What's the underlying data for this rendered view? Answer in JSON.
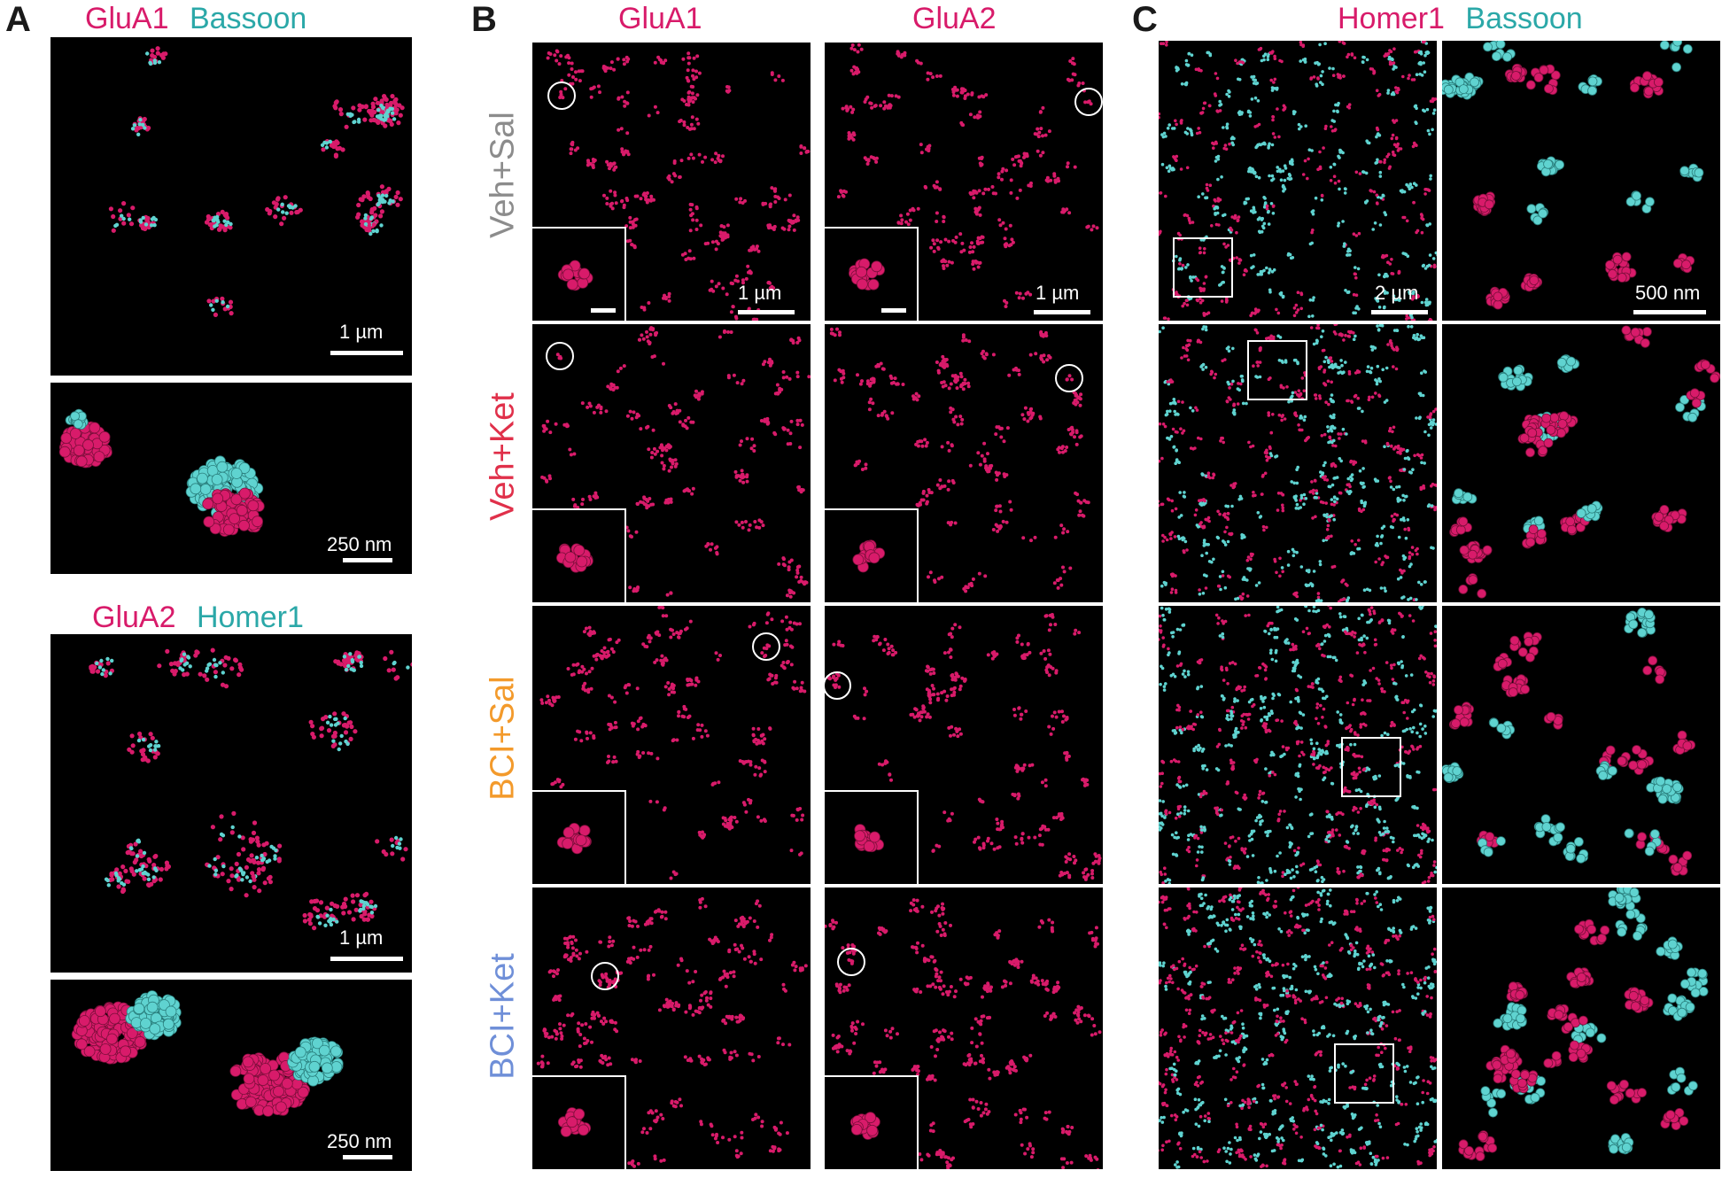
{
  "panels": {
    "a": "A",
    "b": "B",
    "c": "C"
  },
  "a": {
    "top_header": {
      "magenta": "GluA1",
      "cyan": "Bassoon"
    },
    "bottom_header": {
      "magenta": "GluA2",
      "cyan": "Homer1"
    },
    "scale_overview": "1 µm",
    "scale_zoom": "250 nm"
  },
  "b": {
    "col_headers": [
      "GluA1",
      "GluA2"
    ],
    "row_labels": [
      "Veh+Sal",
      "Veh+Ket",
      "BCI+Sal",
      "BCI+Ket"
    ],
    "scale": "1 µm"
  },
  "c": {
    "header": {
      "magenta": "Homer1",
      "cyan": "Bassoon"
    },
    "scale_overview": "2 µm",
    "scale_zoom": "500 nm"
  },
  "colors": {
    "magenta": "#d81b6a",
    "cyan": "#5fd3d0",
    "row_veh_sal": "#8c8c8c",
    "row_veh_ket": "#e0304a",
    "row_bci_sal": "#f39a2b",
    "row_bci_ket": "#6f8fd8"
  }
}
